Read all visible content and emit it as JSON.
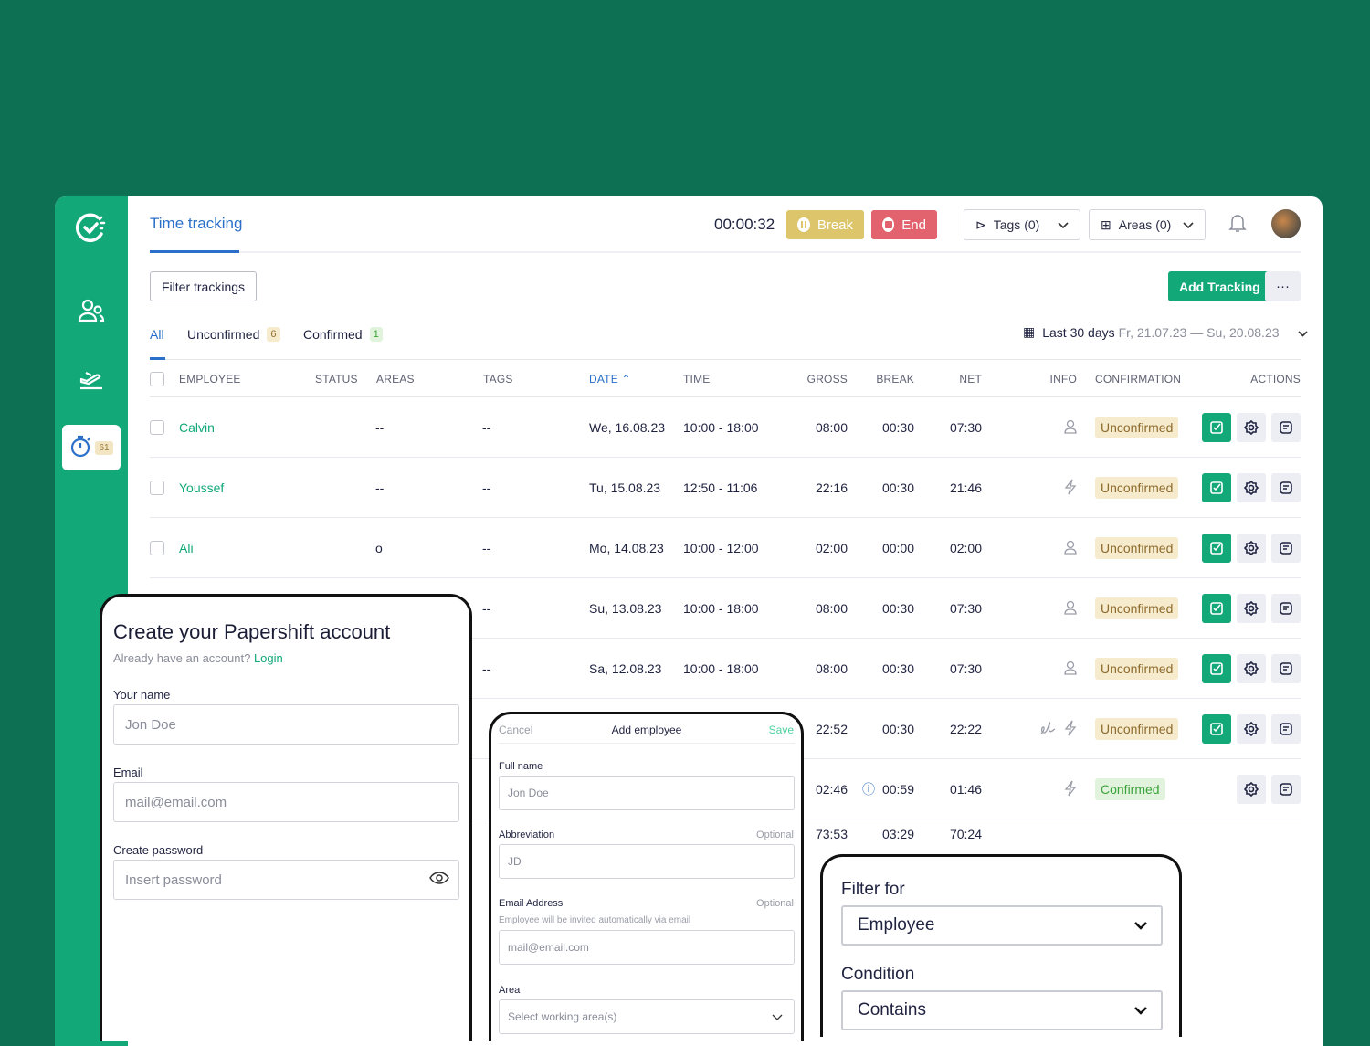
{
  "colors": {
    "background": "#0e7052",
    "sidebar": "#12a878",
    "accent": "#2a6fc9",
    "break": "#dcc56a",
    "end": "#e2636e"
  },
  "sidebar": {
    "items": [
      {
        "icon": "logo-clock-check-icon"
      },
      {
        "icon": "users-icon"
      },
      {
        "icon": "vacation-plane-icon"
      },
      {
        "icon": "stopwatch-icon",
        "badge": "61"
      }
    ]
  },
  "header": {
    "title": "Time tracking",
    "timer": "00:00:32",
    "break_label": "Break",
    "end_label": "End",
    "tags_label": "Tags (0)",
    "areas_label": "Areas (0)"
  },
  "toolbar": {
    "filter_label": "Filter trackings",
    "add_label": "Add Tracking",
    "more_label": "···"
  },
  "tabs": [
    {
      "label": "All"
    },
    {
      "label": "Unconfirmed",
      "count": "6"
    },
    {
      "label": "Confirmed",
      "count": "1"
    }
  ],
  "range": {
    "label": "Last 30 days",
    "dates": "Fr, 21.07.23 — Su, 20.08.23"
  },
  "columns": [
    "EMPLOYEE",
    "STATUS",
    "AREAS",
    "TAGS",
    "DATE",
    "TIME",
    "GROSS",
    "BREAK",
    "NET",
    "INFO",
    "CONFIRMATION",
    "ACTIONS"
  ],
  "rows": [
    {
      "employee": "Calvin",
      "status": "",
      "areas": "--",
      "tags": "--",
      "date": "We, 16.08.23",
      "time": "10:00 - 18:00",
      "gross": "08:00",
      "break": "00:30",
      "net": "07:30",
      "info": [
        "user"
      ],
      "confirmation": "Unconfirmed"
    },
    {
      "employee": "Youssef",
      "status": "",
      "areas": "--",
      "tags": "--",
      "date": "Tu, 15.08.23",
      "time": "12:50 - 11:06",
      "gross": "22:16",
      "break": "00:30",
      "net": "21:46",
      "info": [
        "bolt"
      ],
      "confirmation": "Unconfirmed"
    },
    {
      "employee": "Ali",
      "status": "",
      "areas": "o",
      "tags": "--",
      "date": "Mo, 14.08.23",
      "time": "10:00 - 12:00",
      "gross": "02:00",
      "break": "00:00",
      "net": "02:00",
      "info": [
        "user"
      ],
      "confirmation": "Unconfirmed"
    },
    {
      "employee": "",
      "status": "",
      "areas": "",
      "tags": "--",
      "date": "Su, 13.08.23",
      "time": "10:00 - 18:00",
      "gross": "08:00",
      "break": "00:30",
      "net": "07:30",
      "info": [
        "user"
      ],
      "confirmation": "Unconfirmed"
    },
    {
      "employee": "",
      "status": "",
      "areas": "",
      "tags": "--",
      "date": "Sa, 12.08.23",
      "time": "10:00 - 18:00",
      "gross": "08:00",
      "break": "00:30",
      "net": "07:30",
      "info": [
        "user"
      ],
      "confirmation": "Unconfirmed"
    },
    {
      "employee": "",
      "status": "",
      "areas": "",
      "tags": "",
      "date": "",
      "time": "",
      "gross": "22:52",
      "break": "00:30",
      "net": "22:22",
      "info": [
        "signature",
        "bolt"
      ],
      "confirmation": "Unconfirmed"
    },
    {
      "employee": "",
      "status": "",
      "areas": "",
      "tags": "",
      "date": "",
      "time": "",
      "gross": "02:46",
      "break": "00:59",
      "break_info": true,
      "net": "01:46",
      "info": [
        "bolt"
      ],
      "confirmation": "Confirmed"
    }
  ],
  "totals": {
    "gross": "73:53",
    "break": "03:29",
    "net": "70:24"
  },
  "signup": {
    "title": "Create your Papershift account",
    "subtitle": "Already have an account?",
    "login": "Login",
    "name_label": "Your name",
    "name_placeholder": "Jon Doe",
    "email_label": "Email",
    "email_placeholder": "mail@email.com",
    "password_label": "Create password",
    "password_placeholder": "Insert password"
  },
  "add_employee": {
    "cancel": "Cancel",
    "title": "Add employee",
    "save": "Save",
    "fullname_label": "Full name",
    "fullname_placeholder": "Jon Doe",
    "abbr_label": "Abbreviation",
    "optional": "Optional",
    "abbr_placeholder": "JD",
    "email_label": "Email Address",
    "email_hint": "Employee will be invited automatically via email",
    "email_placeholder": "mail@email.com",
    "area_label": "Area",
    "area_placeholder": "Select working area(s)"
  },
  "filter": {
    "title": "Filter for",
    "field_value": "Employee",
    "condition_label": "Condition",
    "condition_value": "Contains"
  }
}
